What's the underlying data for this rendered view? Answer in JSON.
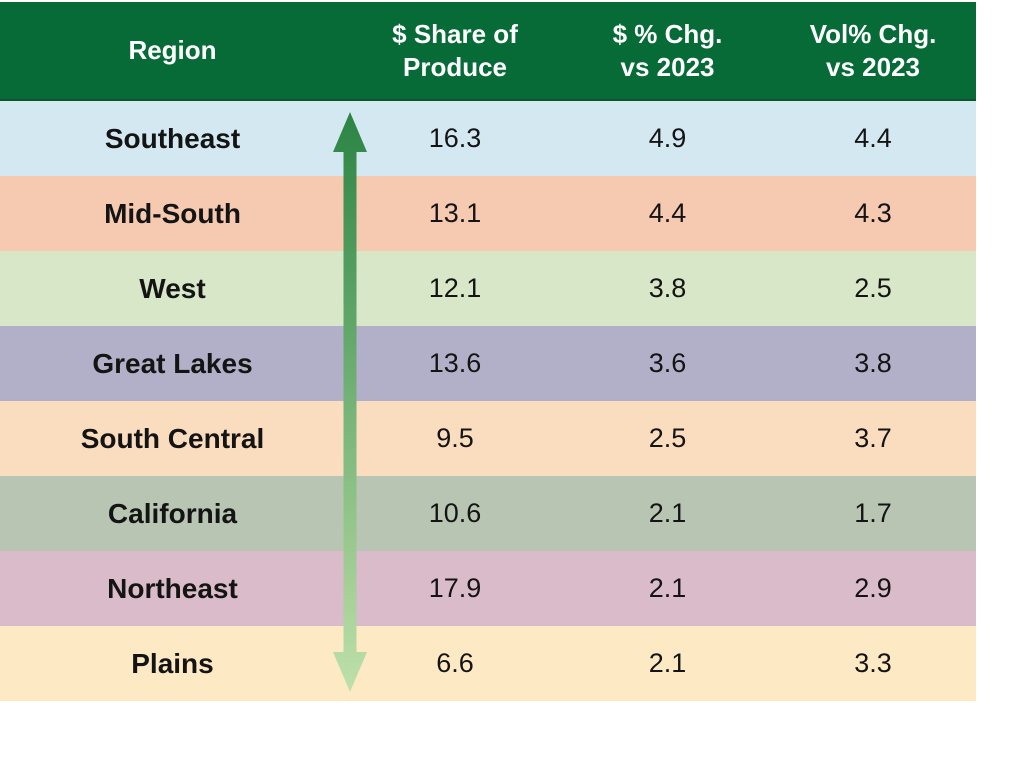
{
  "header": {
    "region_label": "Region",
    "share_label": "$ Share of\nProduce",
    "dollar_chg_label": "$ % Chg.\nvs 2023",
    "vol_chg_label": "Vol% Chg.\nvs 2023",
    "bg_color": "#076b38",
    "text_color": "#ffffff"
  },
  "arrow": {
    "top_color": "#2b8444",
    "bottom_color": "#bfe0aa"
  },
  "chart_data": {
    "type": "table",
    "columns": [
      "Region",
      "$ Share of Produce",
      "$ % Chg. vs 2023",
      "Vol% Chg. vs 2023"
    ],
    "rows": [
      {
        "region": "Southeast",
        "share_of_produce": 16.3,
        "dollar_pct_chg_vs_2023": 4.9,
        "vol_pct_chg_vs_2023": 4.4,
        "row_color": "#d4e8f2"
      },
      {
        "region": "Mid-South",
        "share_of_produce": 13.1,
        "dollar_pct_chg_vs_2023": 4.4,
        "vol_pct_chg_vs_2023": 4.3,
        "row_color": "#f6c9b1"
      },
      {
        "region": "West",
        "share_of_produce": 12.1,
        "dollar_pct_chg_vs_2023": 3.8,
        "vol_pct_chg_vs_2023": 2.5,
        "row_color": "#d8e7c7"
      },
      {
        "region": "Great Lakes",
        "share_of_produce": 13.6,
        "dollar_pct_chg_vs_2023": 3.6,
        "vol_pct_chg_vs_2023": 3.8,
        "row_color": "#b2afc8"
      },
      {
        "region": "South Central",
        "share_of_produce": 9.5,
        "dollar_pct_chg_vs_2023": 2.5,
        "vol_pct_chg_vs_2023": 3.7,
        "row_color": "#fadcbe"
      },
      {
        "region": "California",
        "share_of_produce": 10.6,
        "dollar_pct_chg_vs_2023": 2.1,
        "vol_pct_chg_vs_2023": 1.7,
        "row_color": "#b9c5b3"
      },
      {
        "region": "Northeast",
        "share_of_produce": 17.9,
        "dollar_pct_chg_vs_2023": 2.1,
        "vol_pct_chg_vs_2023": 2.9,
        "row_color": "#dabbc9"
      },
      {
        "region": "Plains",
        "share_of_produce": 6.6,
        "dollar_pct_chg_vs_2023": 2.1,
        "vol_pct_chg_vs_2023": 3.3,
        "row_color": "#fdeac4"
      }
    ]
  }
}
